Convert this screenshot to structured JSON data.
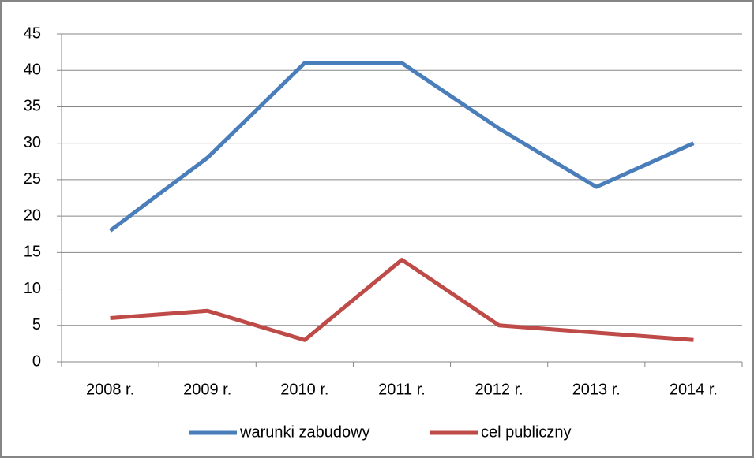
{
  "chart_data": {
    "type": "line",
    "categories": [
      "2008 r.",
      "2009 r.",
      "2010 r.",
      "2011 r.",
      "2012 r.",
      "2013 r.",
      "2014 r."
    ],
    "series": [
      {
        "name": "warunki zabudowy",
        "color": "#4a7ebb",
        "values": [
          18,
          28,
          41,
          41,
          32,
          24,
          30
        ]
      },
      {
        "name": "cel publiczny",
        "color": "#be4b48",
        "values": [
          6,
          7,
          3,
          14,
          5,
          4,
          3
        ]
      }
    ],
    "ylim": [
      0,
      45
    ],
    "yticks": [
      0,
      5,
      10,
      15,
      20,
      25,
      30,
      35,
      40,
      45
    ],
    "grid": true,
    "legend": "bottom"
  }
}
